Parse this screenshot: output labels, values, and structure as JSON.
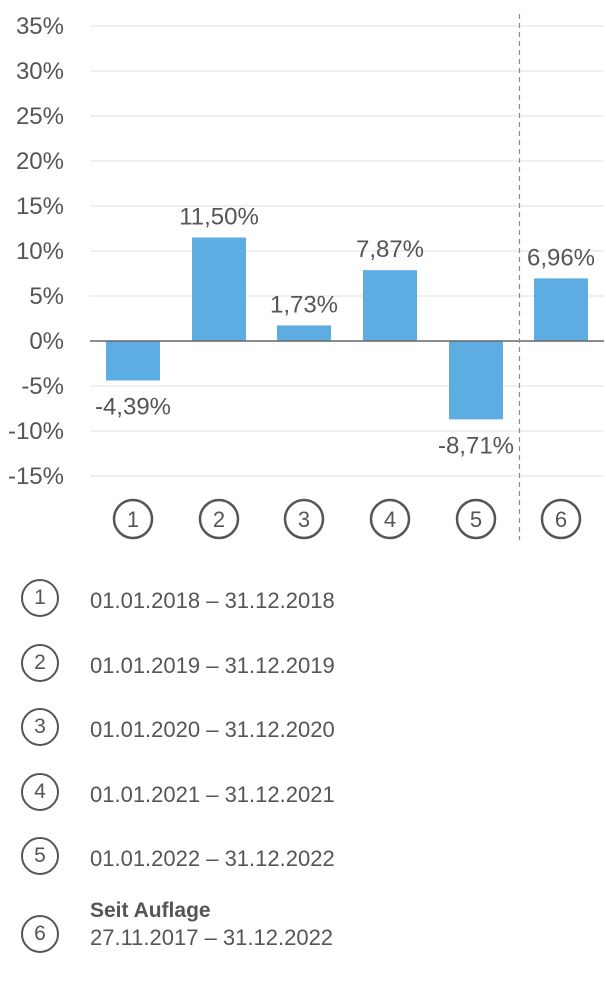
{
  "chart_data": {
    "type": "bar",
    "categories": [
      "1",
      "2",
      "3",
      "4",
      "5",
      "6"
    ],
    "values": [
      -4.39,
      11.5,
      1.73,
      7.87,
      -8.71,
      6.96
    ],
    "value_labels": [
      "-4,39%",
      "11,50%",
      "1,73%",
      "7,87%",
      "-8,71%",
      "6,96%"
    ],
    "y_ticks": [
      35,
      30,
      25,
      20,
      15,
      10,
      5,
      0,
      -5,
      -10,
      -15
    ],
    "y_tick_labels": [
      "35%",
      "30%",
      "25%",
      "20%",
      "15%",
      "10%",
      "5%",
      "0%",
      "-5%",
      "-10%",
      "-15%"
    ],
    "ylim": [
      -15,
      35
    ],
    "bar_color": "#5dade2",
    "grid": true,
    "separator_before_category": "6"
  },
  "legend": {
    "items": [
      {
        "marker": "1",
        "range": "01.01.2018 – 31.12.2018"
      },
      {
        "marker": "2",
        "range": "01.01.2019 – 31.12.2019"
      },
      {
        "marker": "3",
        "range": "01.01.2020 – 31.12.2020"
      },
      {
        "marker": "4",
        "range": "01.01.2021 – 31.12.2021"
      },
      {
        "marker": "5",
        "range": "01.01.2022 – 31.12.2022"
      },
      {
        "marker": "6",
        "title": "Seit Auflage",
        "range": "27.11.2017 – 31.12.2022"
      }
    ]
  }
}
